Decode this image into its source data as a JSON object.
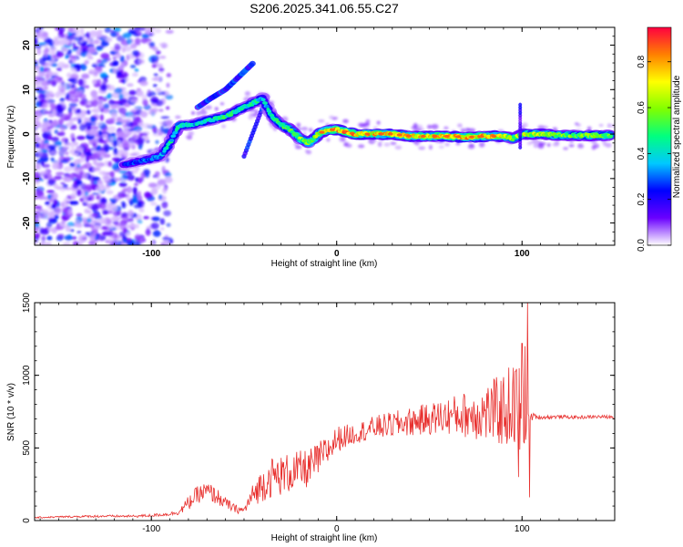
{
  "chart_data": [
    {
      "type": "heatmap",
      "title": "S206.2025.341.06.55.C27",
      "xlabel": "Height of straight line (km)",
      "ylabel": "Frequency (Hz)",
      "xlim": [
        -163,
        150
      ],
      "ylim": [
        -25,
        24
      ],
      "xticks": [
        -100,
        0,
        100
      ],
      "xtick_labels": [
        "-100",
        "0",
        "100"
      ],
      "yticks": [
        -20,
        -10,
        0,
        10,
        20
      ],
      "ytick_labels": [
        "-20",
        "-10",
        "0",
        "10",
        "20"
      ],
      "colorbar": {
        "label": "Normalized spectral amplitude",
        "range": [
          0.0,
          0.95
        ],
        "ticks": [
          0.0,
          0.2,
          0.4,
          0.6,
          0.8
        ],
        "tick_labels": [
          "0.0",
          "0.2",
          "0.4",
          "0.6",
          "0.8"
        ],
        "colormap": [
          "#ffffff",
          "#6a00ff",
          "#0000ff",
          "#00c8ff",
          "#00ff80",
          "#80ff00",
          "#ffff00",
          "#ff8000",
          "#ff0040"
        ]
      },
      "ridge": {
        "x": [
          -115,
          -105,
          -95,
          -90,
          -85,
          -80,
          -70,
          -60,
          -50,
          -45,
          -40,
          -35,
          -30,
          -25,
          -20,
          -15,
          -10,
          -5,
          0,
          10,
          20,
          30,
          40,
          50,
          60,
          70,
          80,
          90,
          95,
          100,
          110,
          120,
          130,
          140,
          148
        ],
        "freq": [
          -7,
          -6,
          -5,
          -2,
          2,
          2,
          3,
          4,
          6,
          7,
          8,
          4,
          2,
          1,
          -1,
          -2,
          0,
          1,
          1,
          0,
          0,
          0,
          -0.5,
          -0.5,
          -0.5,
          -0.7,
          -0.5,
          -0.5,
          -1,
          0,
          0,
          -0.3,
          -0.3,
          -0.3,
          -0.3
        ],
        "amp": [
          0.25,
          0.3,
          0.35,
          0.45,
          0.5,
          0.4,
          0.45,
          0.5,
          0.45,
          0.5,
          0.4,
          0.45,
          0.55,
          0.6,
          0.65,
          0.6,
          0.7,
          0.75,
          0.85,
          0.85,
          0.8,
          0.8,
          0.75,
          0.8,
          0.8,
          0.85,
          0.8,
          0.75,
          0.6,
          0.7,
          0.65,
          0.6,
          0.6,
          0.6,
          0.6
        ]
      },
      "branch": {
        "x": [
          -75,
          -68,
          -60,
          -55,
          -50,
          -45
        ],
        "freq": [
          6,
          8,
          10,
          12,
          14,
          16
        ],
        "amp": 0.3
      },
      "noise_region_x": [
        -163,
        -90
      ]
    },
    {
      "type": "line",
      "xlabel": "Height of straight line (km)",
      "ylabel": "SNR (10 * v/v)",
      "xlim": [
        -163,
        150
      ],
      "ylim": [
        0,
        1500
      ],
      "xticks": [
        -100,
        0,
        100
      ],
      "xtick_labels": [
        "-100",
        "0",
        "100"
      ],
      "yticks": [
        0,
        500,
        1000,
        1500
      ],
      "ytick_labels": [
        "0",
        "500",
        "1000",
        "1500"
      ],
      "color": "#e8302e",
      "series": [
        {
          "name": "SNR",
          "x": [
            -163,
            -150,
            -130,
            -110,
            -100,
            -90,
            -85,
            -80,
            -75,
            -70,
            -65,
            -60,
            -55,
            -50,
            -45,
            -40,
            -35,
            -30,
            -25,
            -20,
            -15,
            -10,
            -5,
            0,
            10,
            20,
            30,
            40,
            50,
            60,
            70,
            80,
            90,
            95,
            100,
            103,
            106,
            110,
            120,
            130,
            140,
            150
          ],
          "y": [
            20,
            25,
            30,
            30,
            35,
            45,
            60,
            120,
            180,
            200,
            170,
            120,
            80,
            70,
            180,
            250,
            300,
            310,
            330,
            340,
            360,
            420,
            480,
            560,
            600,
            640,
            660,
            680,
            700,
            720,
            730,
            740,
            760,
            800,
            740,
            700,
            720,
            710,
            715,
            710,
            715,
            712
          ],
          "spread": [
            5,
            6,
            8,
            8,
            10,
            12,
            20,
            50,
            60,
            70,
            60,
            40,
            30,
            25,
            80,
            120,
            140,
            140,
            140,
            140,
            130,
            120,
            110,
            90,
            70,
            80,
            90,
            100,
            110,
            130,
            160,
            200,
            260,
            300,
            380,
            60,
            20,
            15,
            12,
            12,
            12,
            12
          ],
          "spikes": [
            {
              "x": 103,
              "y": 1500
            },
            {
              "x": 100,
              "y": 1220
            },
            {
              "x": 101.5,
              "y": 1200
            },
            {
              "x": 104,
              "y": 160
            },
            {
              "x": 98,
              "y": 300
            }
          ]
        }
      ]
    }
  ]
}
